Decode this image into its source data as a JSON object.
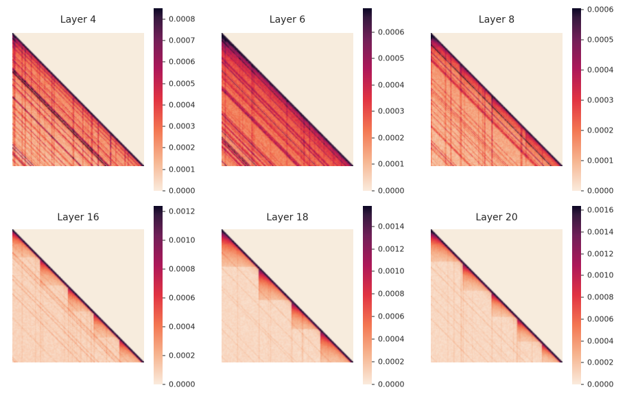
{
  "figure": {
    "background": "#ffffff",
    "masked_color": "#f7ecdd",
    "text_color": "#262626"
  },
  "chart_data": {
    "type": "heatmap",
    "layout": {
      "grid": "2 rows x 3 columns",
      "cell": "lower-triangular attention heatmap, square axes without ticks",
      "colorbar_position": "right of each panel",
      "grid_lines": false
    },
    "colormap": {
      "name": "rocket_r",
      "stops": [
        {
          "pos": 0.0,
          "color": "#faebdd"
        },
        {
          "pos": 0.167,
          "color": "#f6b48f"
        },
        {
          "pos": 0.333,
          "color": "#f37651"
        },
        {
          "pos": 0.5,
          "color": "#e13342"
        },
        {
          "pos": 0.667,
          "color": "#ad1759"
        },
        {
          "pos": 0.833,
          "color": "#701f57"
        },
        {
          "pos": 0.95,
          "color": "#35193e"
        },
        {
          "pos": 1.0,
          "color": "#0b0724"
        }
      ]
    },
    "panels": [
      {
        "title": "Layer 4",
        "colorbar": {
          "vmax_bar": 0.00085,
          "tick_labels": [
            "0.0008",
            "0.0007",
            "0.0006",
            "0.0005",
            "0.0004",
            "0.0003",
            "0.0002",
            "0.0001",
            "0.0000"
          ],
          "tick_values": [
            0.0008,
            0.0007,
            0.0006,
            0.0005,
            0.0004,
            0.0003,
            0.0002,
            0.0001,
            0.0
          ]
        },
        "render": {
          "pattern": "streaks",
          "seed": 41,
          "base": 0.34,
          "dist_fade": 0.5,
          "row_fade": 0.28,
          "top_amp": 0.38,
          "top_decay": 0.09,
          "near_diag_amp": 0.26,
          "near_diag_decay": 0.035,
          "n_diag": 60,
          "diag_min": 0.06,
          "diag_max": 0.34,
          "n_vert": 26,
          "vert_min": 0.06,
          "vert_max": 0.26,
          "noise": 0.1
        }
      },
      {
        "title": "Layer 6",
        "colorbar": {
          "vmax_bar": 0.00069,
          "tick_labels": [
            "0.0006",
            "0.0005",
            "0.0004",
            "0.0003",
            "0.0002",
            "0.0001",
            "0.0000"
          ],
          "tick_values": [
            0.0006,
            0.0005,
            0.0004,
            0.0003,
            0.0002,
            0.0001,
            0.0
          ]
        },
        "render": {
          "pattern": "streaks",
          "seed": 62,
          "base": 0.44,
          "dist_fade": 0.75,
          "row_fade": 0.1,
          "top_amp": 0.42,
          "top_decay": 0.1,
          "near_diag_amp": 0.42,
          "near_diag_decay": 0.05,
          "n_diag": 75,
          "diag_min": 0.05,
          "diag_max": 0.3,
          "n_vert": 18,
          "vert_min": 0.04,
          "vert_max": 0.16,
          "noise": 0.1
        }
      },
      {
        "title": "Layer 8",
        "colorbar": {
          "vmax_bar": 0.000605,
          "tick_labels": [
            "0.0006",
            "0.0005",
            "0.0004",
            "0.0003",
            "0.0002",
            "0.0001",
            "0.0000"
          ],
          "tick_values": [
            0.0006,
            0.0005,
            0.0004,
            0.0003,
            0.0002,
            0.0001,
            0.0
          ]
        },
        "render": {
          "pattern": "streaks",
          "seed": 83,
          "base": 0.3,
          "dist_fade": 0.6,
          "row_fade": 0.22,
          "top_amp": 0.36,
          "top_decay": 0.08,
          "near_diag_amp": 0.34,
          "near_diag_decay": 0.045,
          "n_diag": 40,
          "diag_min": 0.05,
          "diag_max": 0.24,
          "n_vert": 16,
          "vert_min": 0.05,
          "vert_max": 0.18,
          "noise": 0.1,
          "blocks": [
            0,
            0.22,
            0.46,
            0.72,
            1
          ],
          "block_amp": 0.28
        }
      },
      {
        "title": "Layer 16",
        "colorbar": {
          "vmax_bar": 0.00124,
          "tick_labels": [
            "0.0012",
            "0.0010",
            "0.0008",
            "0.0006",
            "0.0004",
            "0.0002",
            "0.0000"
          ],
          "tick_values": [
            0.0012,
            0.001,
            0.0008,
            0.0006,
            0.0004,
            0.0002,
            0.0
          ]
        },
        "render": {
          "pattern": "blocks",
          "seed": 163,
          "base": 0.07,
          "noise": 0.06,
          "blocks": [
            0,
            0.21,
            0.42,
            0.62,
            0.81,
            1
          ],
          "amps": [
            0.72,
            0.68,
            0.66,
            0.62,
            0.66
          ],
          "decay": 0.4,
          "near_diag_amp": 0.2,
          "near_diag_decay": 0.028,
          "n_diag": 14,
          "diag_min": 0.04,
          "diag_max": 0.15,
          "n_vert": 12,
          "vert_min": 0.02,
          "vert_max": 0.07
        }
      },
      {
        "title": "Layer 18",
        "colorbar": {
          "vmax_bar": 0.00158,
          "tick_labels": [
            "0.0014",
            "0.0012",
            "0.0010",
            "0.0008",
            "0.0006",
            "0.0004",
            "0.0002",
            "0.0000"
          ],
          "tick_values": [
            0.0014,
            0.0012,
            0.001,
            0.0008,
            0.0006,
            0.0004,
            0.0002,
            0.0
          ]
        },
        "render": {
          "pattern": "blocks",
          "seed": 184,
          "base": 0.055,
          "noise": 0.05,
          "blocks": [
            0,
            0.28,
            0.53,
            0.75,
            1
          ],
          "amps": [
            0.85,
            0.8,
            0.78,
            0.72
          ],
          "decay": 0.45,
          "near_diag_amp": 0.24,
          "near_diag_decay": 0.03,
          "n_diag": 8,
          "diag_min": 0.03,
          "diag_max": 0.09,
          "n_vert": 10,
          "vert_min": 0.02,
          "vert_max": 0.06
        }
      },
      {
        "title": "Layer 20",
        "colorbar": {
          "vmax_bar": 0.00164,
          "tick_labels": [
            "0.0016",
            "0.0014",
            "0.0012",
            "0.0010",
            "0.0008",
            "0.0006",
            "0.0004",
            "0.0002",
            "0.0000"
          ],
          "tick_values": [
            0.0016,
            0.0014,
            0.0012,
            0.001,
            0.0008,
            0.0006,
            0.0004,
            0.0002,
            0.0
          ]
        },
        "render": {
          "pattern": "blocks",
          "seed": 205,
          "base": 0.055,
          "noise": 0.05,
          "blocks": [
            0,
            0.24,
            0.46,
            0.66,
            0.84,
            1
          ],
          "amps": [
            0.95,
            0.76,
            0.74,
            0.7,
            0.68
          ],
          "decay": 0.4,
          "near_diag_amp": 0.24,
          "near_diag_decay": 0.03,
          "n_diag": 8,
          "diag_min": 0.03,
          "diag_max": 0.09,
          "n_vert": 12,
          "vert_min": 0.02,
          "vert_max": 0.06
        }
      }
    ]
  }
}
